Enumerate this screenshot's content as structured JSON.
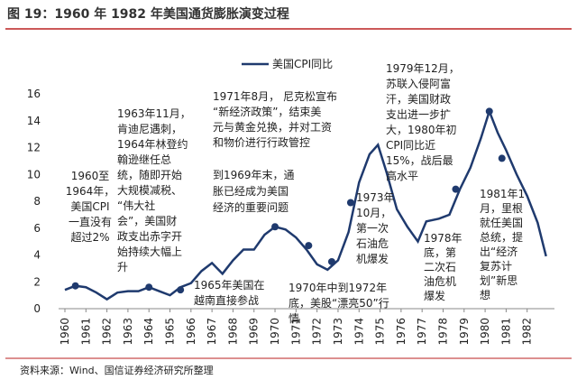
{
  "chart_data": {
    "type": "line",
    "title": "图 19：1960 年 1982 年美国通货膨胀演变过程",
    "source": "资料来源：Wind、国信证券经济研究所整理",
    "series": [
      {
        "name": "美国CPI同比",
        "color": "#1f3a6e",
        "x": [
          1960.0,
          1960.5,
          1961.0,
          1961.5,
          1962.0,
          1962.5,
          1963.0,
          1963.5,
          1964.0,
          1964.5,
          1965.0,
          1965.5,
          1966.0,
          1966.5,
          1967.0,
          1967.5,
          1968.0,
          1968.5,
          1969.0,
          1969.5,
          1970.0,
          1970.5,
          1971.0,
          1971.5,
          1972.0,
          1972.5,
          1973.0,
          1973.5,
          1974.0,
          1974.5,
          1974.9,
          1975.3,
          1975.8,
          1976.3,
          1976.8,
          1977.2,
          1977.8,
          1978.3,
          1978.8,
          1979.3,
          1979.8,
          1980.2,
          1980.6,
          1981.0,
          1981.5,
          1982.0,
          1982.5,
          1982.9
        ],
        "values": [
          1.4,
          1.7,
          1.6,
          1.2,
          0.7,
          1.2,
          1.3,
          1.3,
          1.6,
          1.3,
          1.0,
          1.6,
          1.9,
          2.8,
          3.4,
          2.6,
          3.6,
          4.4,
          4.4,
          5.5,
          6.1,
          5.9,
          5.3,
          4.4,
          3.3,
          2.9,
          3.6,
          5.7,
          9.4,
          11.5,
          12.2,
          10.2,
          7.4,
          6.1,
          5.0,
          6.5,
          6.7,
          7.0,
          8.9,
          10.5,
          12.7,
          14.7,
          13.1,
          11.8,
          10.0,
          8.4,
          6.4,
          3.9
        ]
      }
    ],
    "markers": {
      "x": [
        1960.5,
        1964.0,
        1965.5,
        1970.0,
        1971.6,
        1972.7,
        1973.6,
        1978.6,
        1980.2,
        1980.8
      ],
      "values": [
        1.7,
        1.6,
        1.4,
        6.1,
        4.7,
        3.5,
        7.9,
        8.9,
        14.7,
        11.2
      ]
    },
    "xlim": [
      1959.7,
      1983.3
    ],
    "xticks": [
      1960,
      1961,
      1962,
      1963,
      1964,
      1965,
      1966,
      1967,
      1968,
      1969,
      1970,
      1971,
      1972,
      1973,
      1974,
      1975,
      1976,
      1977,
      1978,
      1979,
      1980,
      1981,
      1982
    ],
    "ylim": [
      0,
      16
    ],
    "yticks": [
      0,
      2,
      4,
      6,
      8,
      10,
      12,
      14,
      16
    ],
    "annotations": [
      [
        "1960至",
        "1964年，",
        "美国CPI",
        "一直没有",
        "超过2%"
      ],
      [
        "1963年11月，",
        "肯迪尼遇刺，",
        "1964年林登约",
        "翰逊继任总",
        "统，随即开始",
        "大规模减税、",
        "“伟大社",
        "会”，美国财",
        "政支出赤字开",
        "始持续大幅上",
        "升"
      ],
      [
        "1965年美国在",
        "越南直接参战"
      ],
      [
        "1971年8月， 尼克松宣布",
        "“新经济政策”，结束美",
        "元与黄金兑换，并对工资",
        "和物价进行行政管控"
      ],
      [
        "到1969年末，通",
        "胀已经成为美国",
        "经济的重要问题"
      ],
      [
        "1970年中到1972年",
        "底，美股“漂亮50”行",
        "情"
      ],
      [
        "1973年",
        "10月，",
        "第一次",
        "石油危",
        "机爆发"
      ],
      [
        "1978年",
        "底，第",
        "二次石",
        "油危机",
        "爆发"
      ],
      [
        "1979年12月，",
        "苏联入侵阿富",
        "汗，美国财政",
        "支出进一步扩",
        "大，1980年初",
        "CPI同比近",
        "15%，战后最",
        "高水平"
      ],
      [
        "1981年1",
        "月，里根",
        "就任美国",
        "总统，提",
        "出“经济",
        "复苏计",
        "划”新思",
        "想"
      ]
    ]
  }
}
